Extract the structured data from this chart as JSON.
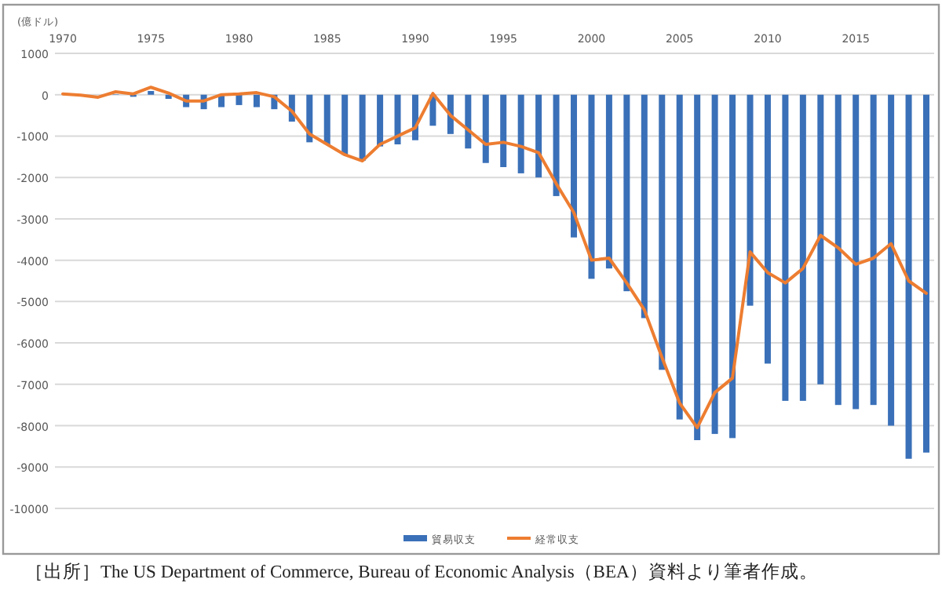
{
  "chart_data": {
    "type": "bar",
    "ylabel": "(億ドル)",
    "categories": [
      "1970",
      null,
      null,
      null,
      null,
      "1975",
      null,
      null,
      null,
      null,
      "1980",
      null,
      null,
      null,
      null,
      "1985",
      null,
      null,
      null,
      null,
      "1990",
      null,
      null,
      null,
      null,
      "1995",
      null,
      null,
      null,
      null,
      "2000",
      null,
      null,
      null,
      null,
      "2005",
      null,
      null,
      null,
      null,
      "2010",
      null,
      null,
      null,
      null,
      "2015",
      null,
      null,
      null,
      null
    ],
    "series": [
      {
        "name": "貿易収支",
        "color": "#3a70b8",
        "values": [
          null,
          null,
          null,
          10,
          -50,
          90,
          -100,
          -300,
          -350,
          -300,
          -250,
          -300,
          -350,
          -650,
          -1150,
          -1200,
          -1450,
          -1600,
          -1250,
          -1200,
          -1100,
          -750,
          -950,
          -1300,
          -1650,
          -1750,
          -1900,
          -2000,
          -2450,
          -3450,
          -4450,
          -4200,
          -4750,
          -5400,
          -6650,
          -7850,
          -8350,
          -8200,
          -8300,
          -5100,
          -6500,
          -7400,
          -7400,
          -7000,
          -7500,
          -7600,
          -7500,
          -8000,
          -8800,
          -8650
        ]
      },
      {
        "name": "経常収支",
        "type": "line",
        "color": "#ed7d31",
        "values": [
          20,
          -10,
          -60,
          70,
          20,
          180,
          40,
          -150,
          -150,
          0,
          20,
          50,
          -50,
          -400,
          -950,
          -1200,
          -1450,
          -1600,
          -1200,
          -1000,
          -800,
          30,
          -500,
          -850,
          -1200,
          -1150,
          -1250,
          -1400,
          -2150,
          -2850,
          -4000,
          -3950,
          -4550,
          -5200,
          -6350,
          -7450,
          -8050,
          -7200,
          -6850,
          -3800,
          -4300,
          -4550,
          -4200,
          -3400,
          -3700,
          -4100,
          -3950,
          -3600,
          -4500,
          -4800
        ]
      }
    ],
    "ylim": [
      -10000,
      1000
    ],
    "yticks": [
      -10000,
      -9000,
      -8000,
      -7000,
      -6000,
      -5000,
      -4000,
      -3000,
      -2000,
      -1000,
      0,
      1000
    ],
    "grid": "y",
    "legend": "bottom",
    "annotations": [
      "［出所］The US Department of Commerce, Bureau of Economic Analysis（BEA）資料より筆者作成。"
    ]
  }
}
